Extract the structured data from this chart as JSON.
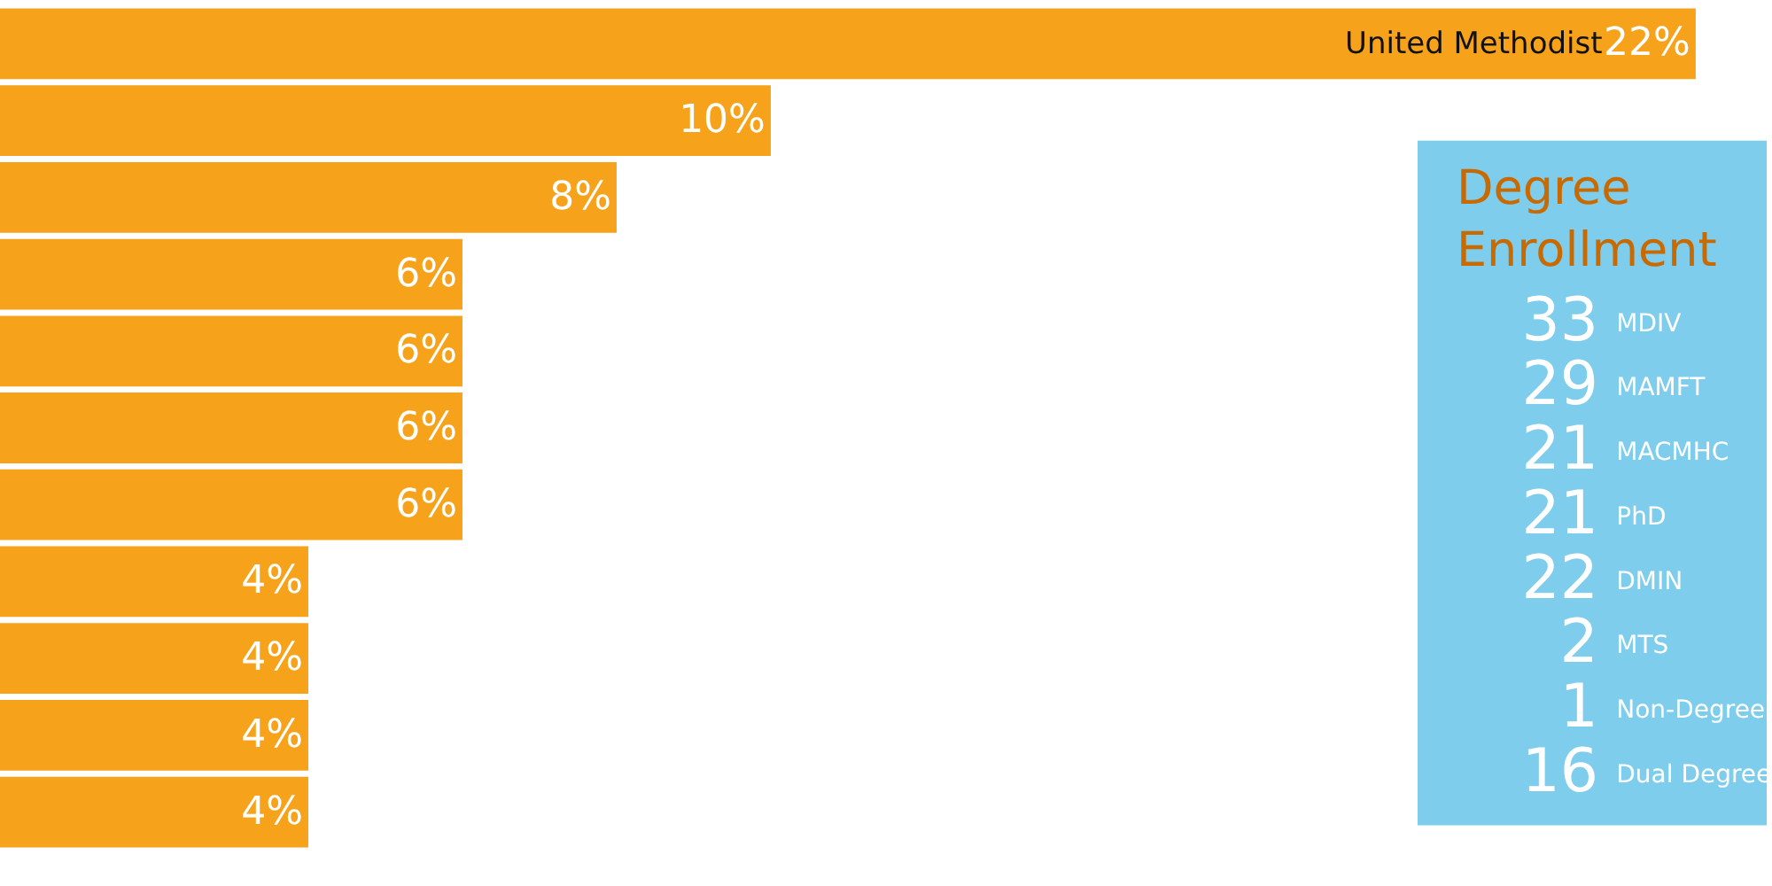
{
  "chart_data": [
    {
      "type": "bar",
      "orientation": "horizontal",
      "categories": [
        "United Methodist",
        null,
        null,
        null,
        null,
        null,
        null,
        null,
        null,
        null,
        null
      ],
      "values": [
        22,
        10,
        8,
        6,
        6,
        6,
        6,
        4,
        4,
        4,
        4
      ],
      "color": "#f7a21b",
      "value_labels": [
        "22%",
        "10%",
        "8%",
        "6%",
        "6%",
        "6%",
        "6%",
        "4%",
        "4%",
        "4%",
        "4%"
      ],
      "tick_labels": false
    },
    {
      "type": "other",
      "title": "Degree Enrollment",
      "categories": [
        "MDIV",
        "MAMFT",
        "MACMHC",
        "PhD",
        "DMIN",
        "MTS",
        "Non-Degree",
        "Dual Degree"
      ],
      "values": [
        33,
        29,
        21,
        21,
        22,
        2,
        1,
        16
      ],
      "color": "#7ecdec",
      "data_labels": true
    }
  ]
}
